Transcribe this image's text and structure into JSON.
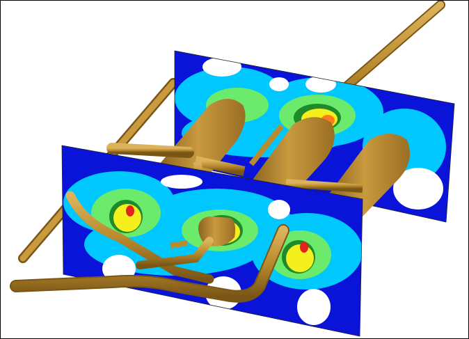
{
  "scene": {
    "kind": "3d-cfd-contour-render",
    "background": "#ffffff",
    "frame_border": "#000000",
    "pipe_color": "#b98a2e",
    "pipe_highlight": "#dcb35c",
    "pipe_shadow": "#7a5616",
    "contour_levels": [
      "#0a14d8",
      "#00c8ff",
      "#6bea6b",
      "#1f8a2a",
      "#f5ef1e",
      "#ff7a1a",
      "#e0231c"
    ],
    "planes": [
      "rear-cut-plane",
      "front-cut-plane"
    ]
  }
}
